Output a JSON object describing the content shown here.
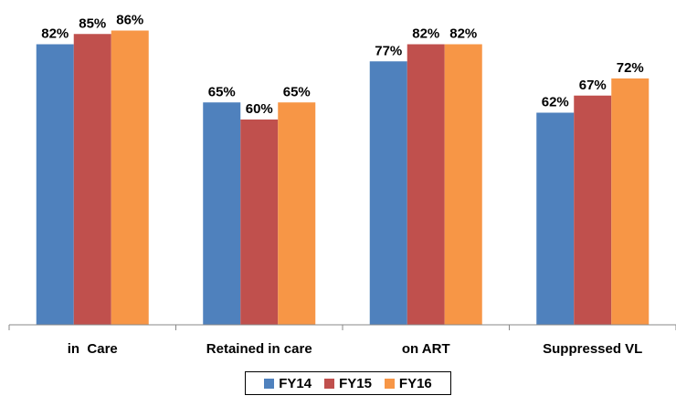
{
  "chart_data": {
    "type": "bar",
    "categories": [
      "in  Care",
      "Retained in care",
      "on ART",
      "Suppressed VL"
    ],
    "series": [
      {
        "name": "FY14",
        "color": "#4F81BD",
        "values": [
          82,
          65,
          77,
          62
        ]
      },
      {
        "name": "FY15",
        "color": "#C0504D",
        "values": [
          85,
          60,
          82,
          67
        ]
      },
      {
        "name": "FY16",
        "color": "#F79646",
        "values": [
          86,
          65,
          82,
          72
        ]
      }
    ],
    "value_suffix": "%",
    "ylim": [
      0,
      100
    ],
    "grid": false,
    "legend_position": "bottom"
  }
}
